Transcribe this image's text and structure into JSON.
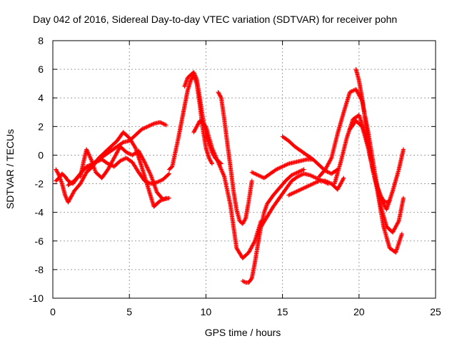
{
  "chart_data": {
    "type": "scatter",
    "title": "Day 042 of 2016, Sidereal Day-to-day VTEC variation (SDTVAR) for receiver pohn",
    "xlabel": "GPS time / hours",
    "ylabel": "SDTVAR / TECUs",
    "xlim": [
      0,
      25
    ],
    "ylim": [
      -10,
      8
    ],
    "xticks": [
      0,
      5,
      10,
      15,
      20,
      25
    ],
    "yticks": [
      -10,
      -8,
      -6,
      -4,
      -2,
      0,
      2,
      4,
      6,
      8
    ],
    "grid": true,
    "marker": "+",
    "color": "#ff0000",
    "series": [
      {
        "x": [
          0.2,
          0.4,
          0.6,
          0.8,
          1.0,
          1.3,
          1.6,
          2.0,
          2.4,
          2.8,
          3.2,
          3.6,
          4.0,
          4.4,
          4.8,
          5.2,
          5.6,
          6.0,
          6.4,
          6.8,
          7.2,
          7.6
        ],
        "y": [
          -1.8,
          -1.6,
          -1.3,
          -1.5,
          -1.8,
          -2.0,
          -1.6,
          -1.0,
          -0.8,
          -0.5,
          -0.3,
          -0.6,
          -0.8,
          -0.4,
          -0.2,
          -0.5,
          -1.2,
          -1.8,
          -2.0,
          -1.9,
          -1.7,
          -1.3
        ]
      },
      {
        "x": [
          0.2,
          0.4,
          0.6,
          0.8,
          1.0,
          1.4,
          1.8,
          2.2,
          2.6,
          3.0,
          3.4,
          3.8,
          4.2,
          4.6,
          5.0,
          5.4,
          5.8,
          6.2,
          6.6,
          7.0,
          7.4
        ],
        "y": [
          -1.0,
          -1.4,
          -2.0,
          -2.8,
          -3.3,
          -2.5,
          -2.0,
          -1.2,
          -0.8,
          -0.2,
          0.2,
          0.6,
          1.0,
          1.6,
          1.2,
          0.5,
          -0.8,
          -2.2,
          -3.6,
          -3.2,
          -3.0
        ]
      },
      {
        "x": [
          1.0,
          1.4,
          1.8,
          2.2,
          2.6,
          3.0,
          3.4,
          3.8,
          4.2,
          4.6,
          5.0,
          5.4,
          5.8,
          6.2,
          6.6,
          7.0,
          7.4
        ],
        "y": [
          -2.1,
          -1.8,
          -1.3,
          -0.8,
          -0.6,
          -0.3,
          0.0,
          0.3,
          0.6,
          0.9,
          1.0,
          1.4,
          1.8,
          2.0,
          2.2,
          2.3,
          2.1
        ]
      },
      {
        "x": [
          1.8,
          2.0,
          2.2,
          2.5,
          2.8,
          3.2,
          3.6,
          4.0,
          4.4,
          4.8,
          5.2,
          5.6,
          6.0,
          6.4,
          6.8,
          7.2,
          7.6
        ],
        "y": [
          -1.5,
          -0.5,
          0.4,
          -0.3,
          -1.2,
          -1.6,
          -1.0,
          -0.2,
          0.6,
          0.2,
          0.0,
          0.3,
          -0.5,
          -1.4,
          -2.6,
          -3.1,
          -3.0
        ]
      },
      {
        "x": [
          7.6,
          7.8,
          8.0,
          8.2,
          8.4,
          8.6,
          8.8,
          9.0,
          9.2,
          9.4,
          9.6,
          9.8,
          10.0,
          10.2,
          10.4
        ],
        "y": [
          -1.0,
          -0.8,
          0.2,
          1.2,
          2.3,
          3.4,
          4.5,
          5.2,
          5.6,
          5.0,
          3.5,
          1.8,
          0.5,
          -0.2,
          -0.6
        ]
      },
      {
        "x": [
          8.6,
          8.8,
          9.0,
          9.2,
          9.4,
          9.6,
          9.8,
          10.0,
          10.2,
          10.4,
          10.6,
          10.8,
          11.0
        ],
        "y": [
          4.8,
          5.4,
          5.6,
          5.8,
          5.3,
          4.0,
          2.6,
          1.5,
          0.8,
          0.2,
          -0.2,
          -0.4,
          -0.6
        ]
      },
      {
        "x": [
          9.2,
          9.6,
          10.0,
          10.4,
          10.8,
          11.2,
          11.6,
          12.0,
          12.4,
          12.8,
          13.2,
          13.6
        ],
        "y": [
          1.6,
          2.4,
          2.0,
          0.5,
          -0.5,
          -1.5,
          -3.5,
          -6.5,
          -7.2,
          -6.8,
          -6.0,
          -4.6
        ]
      },
      {
        "x": [
          10.8,
          11.0,
          11.2,
          11.4,
          11.6,
          11.8,
          12.0,
          12.2,
          12.4,
          12.6,
          12.8,
          13.0
        ],
        "y": [
          4.4,
          4.0,
          2.5,
          0.8,
          -0.8,
          -2.5,
          -3.8,
          -4.6,
          -4.8,
          -4.4,
          -3.2,
          -1.8
        ]
      },
      {
        "x": [
          12.4,
          12.6,
          12.8,
          13.0,
          13.2,
          13.4,
          13.6,
          13.8,
          14.0,
          14.4,
          14.8,
          15.2,
          15.6,
          16.0,
          16.4
        ],
        "y": [
          -8.8,
          -8.9,
          -8.9,
          -8.6,
          -7.5,
          -6.2,
          -5.0,
          -4.0,
          -3.4,
          -2.8,
          -2.3,
          -1.8,
          -1.4,
          -1.2,
          -1.0
        ]
      },
      {
        "x": [
          13.0,
          13.4,
          13.8,
          14.2,
          14.6,
          15.0,
          15.4,
          15.8,
          16.2,
          16.6,
          17.0
        ],
        "y": [
          -1.2,
          -1.4,
          -1.6,
          -1.3,
          -1.0,
          -0.8,
          -0.6,
          -0.5,
          -0.4,
          -0.3,
          -0.3
        ]
      },
      {
        "x": [
          13.6,
          14.0,
          14.4,
          14.8,
          15.2,
          15.6,
          16.0,
          16.4,
          16.8,
          17.2,
          17.6,
          18.0
        ],
        "y": [
          -5.0,
          -4.3,
          -3.6,
          -3.0,
          -2.4,
          -1.8,
          -1.5,
          -1.3,
          -1.4,
          -1.6,
          -1.8,
          -2.0
        ]
      },
      {
        "x": [
          15.0,
          15.4,
          15.8,
          16.2,
          16.6,
          17.0,
          17.4,
          17.8,
          18.2,
          18.6
        ],
        "y": [
          1.3,
          1.0,
          0.6,
          0.3,
          0.0,
          -0.3,
          -0.7,
          -1.1,
          -1.3,
          -1.0
        ]
      },
      {
        "x": [
          15.4,
          15.8,
          16.2,
          16.6,
          17.0,
          17.4,
          17.8,
          18.2,
          18.6,
          19.0
        ],
        "y": [
          -2.8,
          -2.6,
          -2.4,
          -2.2,
          -2.0,
          -1.8,
          -1.8,
          -2.0,
          -2.4,
          -1.6
        ]
      },
      {
        "x": [
          17.4,
          17.8,
          18.2,
          18.6,
          19.0,
          19.4,
          19.8,
          20.2,
          20.6,
          21.0,
          21.4,
          21.8,
          22.2,
          22.6,
          22.9
        ],
        "y": [
          -1.5,
          -1.0,
          -0.2,
          1.5,
          3.0,
          4.4,
          4.6,
          3.8,
          1.6,
          -1.0,
          -3.5,
          -5.0,
          -5.4,
          -4.6,
          -3.0
        ]
      },
      {
        "x": [
          18.4,
          18.8,
          19.2,
          19.6,
          20.0,
          20.4,
          20.8,
          21.2,
          21.6,
          22.0,
          22.4,
          22.8
        ],
        "y": [
          -2.0,
          -0.5,
          1.2,
          2.5,
          2.8,
          1.5,
          -0.5,
          -2.5,
          -5.0,
          -6.5,
          -6.8,
          -5.5
        ]
      },
      {
        "x": [
          19.8,
          20.0,
          20.2,
          20.4,
          20.6,
          20.8,
          21.0,
          21.2,
          21.4,
          21.6,
          21.8,
          22.0
        ],
        "y": [
          6.0,
          5.2,
          4.0,
          2.5,
          1.0,
          -0.5,
          -1.5,
          -2.2,
          -2.8,
          -3.2,
          -3.3,
          -3.2
        ]
      },
      {
        "x": [
          19.4,
          19.8,
          20.2,
          20.6,
          21.0,
          21.4,
          21.8,
          22.2,
          22.6,
          22.9
        ],
        "y": [
          1.8,
          2.4,
          2.0,
          0.5,
          -1.5,
          -3.0,
          -3.8,
          -2.5,
          -1.0,
          0.4
        ]
      }
    ]
  }
}
